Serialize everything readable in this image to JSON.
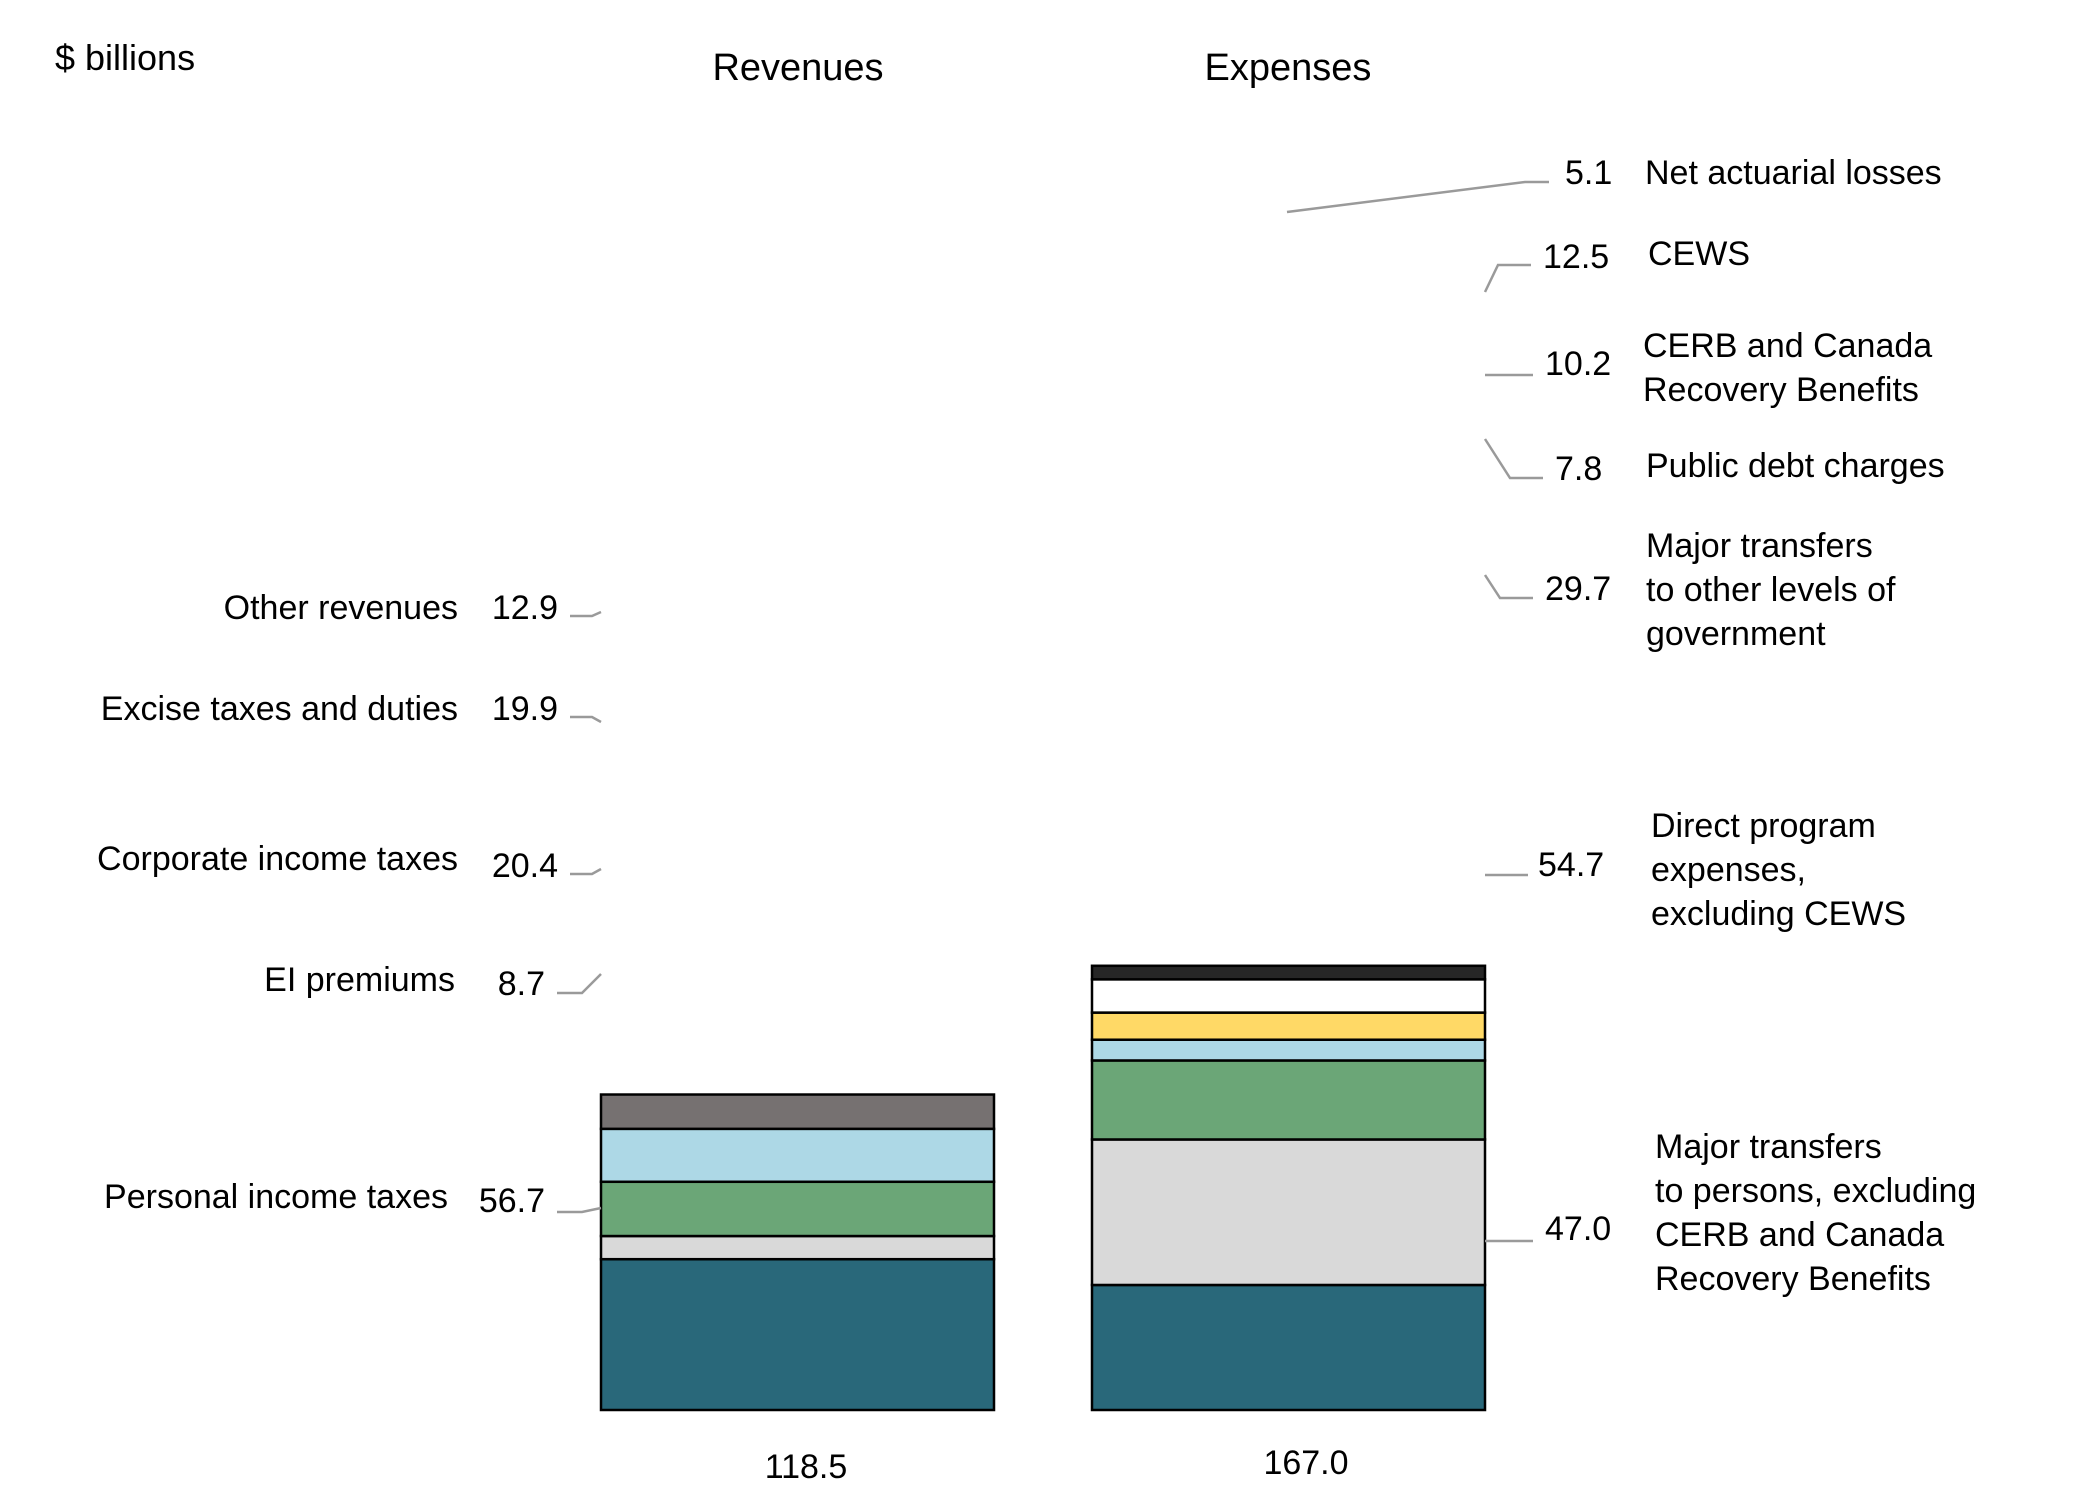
{
  "chart_data": {
    "type": "bar",
    "stacked": true,
    "unit_label": "$ billions",
    "categories": [
      "Revenues",
      "Expenses"
    ],
    "totals": [
      "118.5",
      "167.0"
    ],
    "stacks": [
      {
        "category": "Revenues",
        "segments": [
          {
            "name": "Personal income taxes",
            "value": 56.7,
            "value_label": "56.7",
            "color": "#29687a",
            "label_lines": [
              "Personal income taxes"
            ]
          },
          {
            "name": "EI premiums",
            "value": 8.7,
            "value_label": "8.7",
            "color": "#d9d9d9",
            "label_lines": [
              "EI premiums"
            ]
          },
          {
            "name": "Corporate income taxes",
            "value": 20.4,
            "value_label": "20.4",
            "color": "#6ba677",
            "label_lines": [
              "Corporate income taxes"
            ]
          },
          {
            "name": "Excise taxes and duties",
            "value": 19.9,
            "value_label": "19.9",
            "color": "#add8e6",
            "label_lines": [
              "Excise taxes and duties"
            ]
          },
          {
            "name": "Other revenues",
            "value": 12.9,
            "value_label": "12.9",
            "color": "#767171",
            "label_lines": [
              "Other revenues"
            ]
          }
        ]
      },
      {
        "category": "Expenses",
        "segments": [
          {
            "name": "Major transfers to persons, excluding CERB and Canada Recovery Benefits",
            "value": 47.0,
            "value_label": "47.0",
            "color": "#29687a",
            "label_lines": [
              "Major transfers",
              "to persons, excluding",
              "CERB and Canada",
              "Recovery Benefits"
            ]
          },
          {
            "name": "Direct program expenses, excluding CEWS",
            "value": 54.7,
            "value_label": "54.7",
            "color": "#d9d9d9",
            "label_lines": [
              "Direct program",
              "expenses,",
              "excluding CEWS"
            ]
          },
          {
            "name": "Major transfers to other levels of government",
            "value": 29.7,
            "value_label": "29.7",
            "color": "#6ba677",
            "label_lines": [
              "Major transfers",
              "to other levels of",
              "government"
            ]
          },
          {
            "name": "Public debt charges",
            "value": 7.8,
            "value_label": "7.8",
            "color": "#add8e6",
            "label_lines": [
              "Public debt charges"
            ]
          },
          {
            "name": "CERB and Canada Recovery Benefits",
            "value": 10.2,
            "value_label": "10.2",
            "color": "#ffd966",
            "label_lines": [
              "CERB and Canada",
              "Recovery Benefits"
            ]
          },
          {
            "name": "CEWS",
            "value": 12.5,
            "value_label": "12.5",
            "color": "#ffffff",
            "label_lines": [
              "CEWS"
            ]
          },
          {
            "name": "Net actuarial losses",
            "value": 5.1,
            "value_label": "5.1",
            "color": "#262626",
            "label_lines": [
              "Net actuarial losses"
            ]
          }
        ]
      }
    ],
    "grid": false,
    "legend": "none"
  }
}
